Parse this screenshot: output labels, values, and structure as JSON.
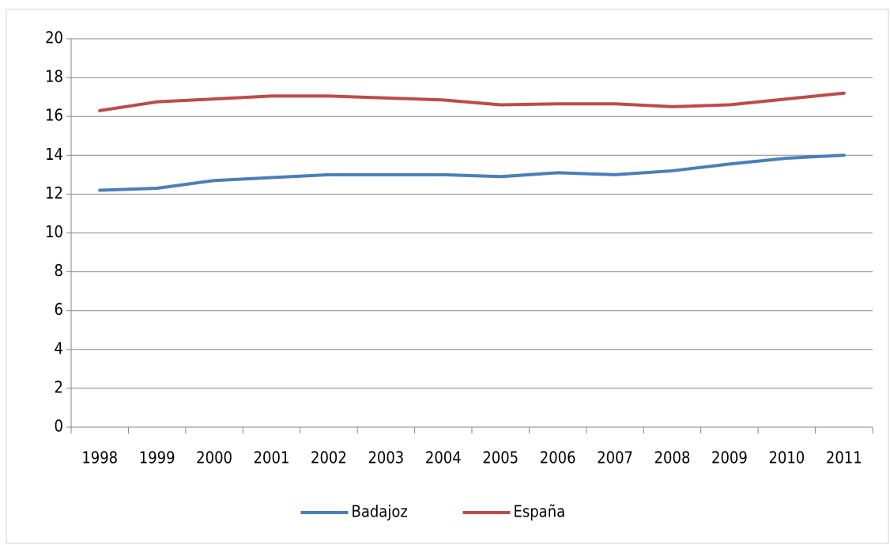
{
  "chart_data": {
    "type": "line",
    "categories": [
      "1998",
      "1999",
      "2000",
      "2001",
      "2002",
      "2003",
      "2004",
      "2005",
      "2006",
      "2007",
      "2008",
      "2009",
      "2010",
      "2011"
    ],
    "series": [
      {
        "name": "Badajoz",
        "color": "#4a7ebb",
        "values": [
          12.2,
          12.3,
          12.7,
          12.85,
          13.0,
          13.0,
          13.0,
          12.9,
          13.1,
          13.0,
          13.2,
          13.55,
          13.85,
          14.0
        ]
      },
      {
        "name": "España",
        "color": "#be4b48",
        "values": [
          16.3,
          16.75,
          16.9,
          17.05,
          17.05,
          16.95,
          16.85,
          16.6,
          16.65,
          16.65,
          16.5,
          16.6,
          16.9,
          17.2
        ]
      }
    ],
    "ylim": [
      0,
      20
    ],
    "yticks": [
      0,
      2,
      4,
      6,
      8,
      10,
      12,
      14,
      16,
      18,
      20
    ],
    "grid": true,
    "legend": "bottom"
  }
}
